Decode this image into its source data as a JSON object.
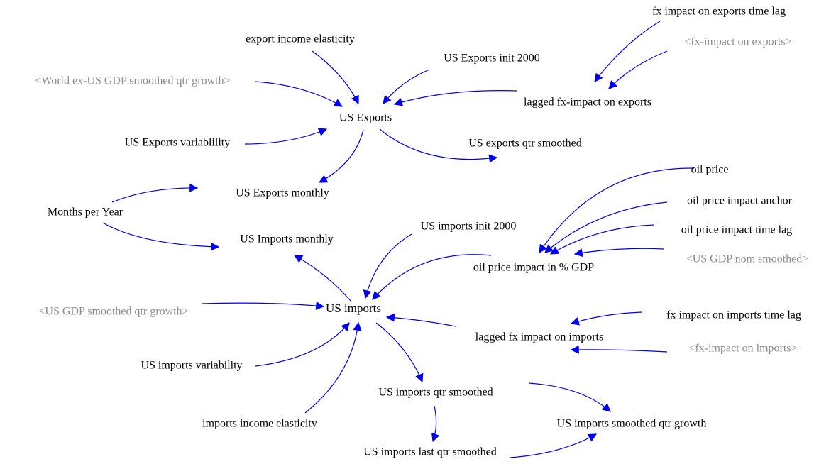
{
  "nodes": [
    {
      "label": "fx impact on exports time lag"
    },
    {
      "label": "<fx-impact on exports>"
    },
    {
      "label": "export income elasticity"
    },
    {
      "label": "US Exports init 2000"
    },
    {
      "label": "<World ex-US GDP smoothed qtr growth>"
    },
    {
      "label": "lagged fx-impact on exports"
    },
    {
      "label": "US Exports"
    },
    {
      "label": "US Exports variablility"
    },
    {
      "label": "US exports qtr smoothed"
    },
    {
      "label": "oil price"
    },
    {
      "label": "US Exports monthly"
    },
    {
      "label": "oil price impact anchor"
    },
    {
      "label": "Months per Year"
    },
    {
      "label": "US imports init 2000"
    },
    {
      "label": "oil price impact time lag"
    },
    {
      "label": "US Imports monthly"
    },
    {
      "label": "<US GDP nom smoothed>"
    },
    {
      "label": "oil price impact in % GDP"
    },
    {
      "label": "<US GDP smoothed qtr growth>"
    },
    {
      "label": "US imports"
    },
    {
      "label": "fx impact on imports time lag"
    },
    {
      "label": "lagged fx impact on imports"
    },
    {
      "label": "<fx-impact on imports>"
    },
    {
      "label": "US imports variability"
    },
    {
      "label": "US imports qtr smoothed"
    },
    {
      "label": "imports income elasticity"
    },
    {
      "label": "US imports smoothed qtr growth"
    },
    {
      "label": "US imports last qtr smoothed"
    }
  ]
}
